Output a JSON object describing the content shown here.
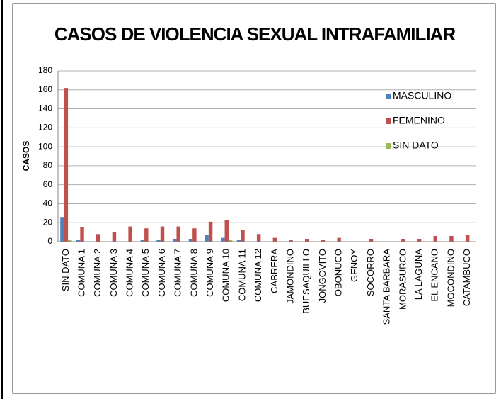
{
  "chart_data": {
    "type": "bar",
    "title": "CASOS DE VIOLENCIA SEXUAL INTRAFAMILIAR",
    "y_label": "CASOS",
    "categories": [
      "SIN DATO",
      "COMUNA 1",
      "COMUNA 2",
      "COMUNA 3",
      "COMUNA 4",
      "COMUNA 5",
      "COMUNA 6",
      "COMUNA 7",
      "COMUNA 8",
      "COMUNA 9",
      "COMUNA 10",
      "COMUNA 11",
      "COMUNA 12",
      "CABRERA",
      "JAMONDINO",
      "BUESAQUILLO",
      "JONGOVITO",
      "OBONUCO",
      "GENOY",
      "SOCORRO",
      "SANTA BARBARA",
      "MORASURCO",
      "LA LAGUNA",
      "EL ENCANO",
      "MOCONDINO",
      "CATAMBUCO"
    ],
    "series": [
      {
        "name": "MASCULINO",
        "color": "#4f81bd",
        "values": [
          26,
          2,
          0,
          0,
          0,
          2,
          2,
          3,
          3,
          7,
          4,
          2,
          0,
          0,
          0,
          0,
          0,
          0,
          0,
          0,
          0,
          0,
          0,
          0,
          0,
          0
        ]
      },
      {
        "name": "FEMENINO",
        "color": "#c0504d",
        "values": [
          162,
          15,
          8,
          10,
          16,
          14,
          16,
          16,
          14,
          21,
          23,
          12,
          8,
          4,
          2,
          3,
          2,
          4,
          0,
          3,
          0,
          3,
          3,
          6,
          6,
          7
        ]
      },
      {
        "name": "SIN DATO",
        "color": "#9bbb59",
        "values": [
          2,
          0,
          0,
          0,
          0,
          0,
          0,
          0,
          0,
          0,
          2,
          0,
          0,
          0,
          0,
          0,
          0,
          0,
          0,
          0,
          0,
          0,
          0,
          0,
          0,
          0
        ]
      }
    ],
    "ylim": [
      0,
      180
    ],
    "yticks": [
      0,
      20,
      40,
      60,
      80,
      100,
      120,
      140,
      160,
      180
    ],
    "grid": true,
    "legend": "right"
  }
}
